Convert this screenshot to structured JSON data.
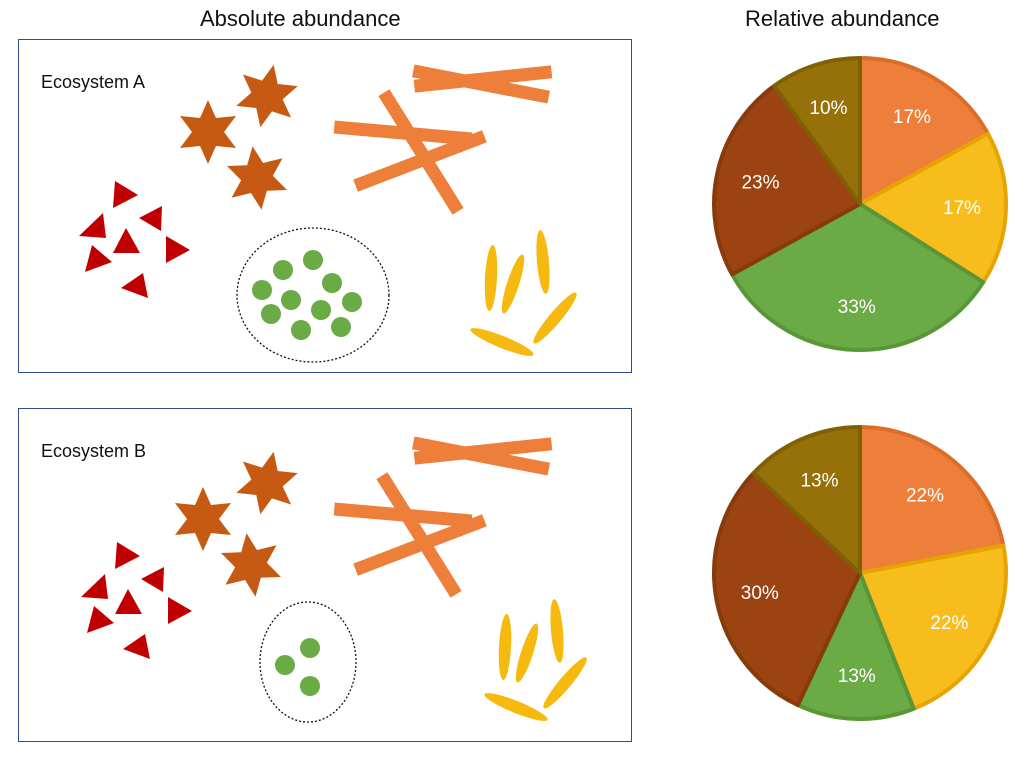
{
  "headings": {
    "absolute": "Absolute abundance",
    "relative": "Relative abundance"
  },
  "colors": {
    "orange_rod": "#ee7f3b",
    "yellow": "#f6b90f",
    "green": "#6aab46",
    "dark_brown": "#9b4411",
    "olive": "#967008",
    "star_brown": "#c65a13",
    "red_triangle": "#c00000",
    "border_blue": "#2f4d8c"
  },
  "ecosystems": [
    {
      "label": "Ecosystem A",
      "counts": {
        "red_triangles": 7,
        "brown_stars": 3,
        "green_dots": 10,
        "orange_rods": 5,
        "yellow_ovals": 5
      },
      "slices": [
        {
          "name": "orange",
          "pct": "17%",
          "value": 17,
          "fill": "#ee7f3b",
          "stroke": "#dc6d28"
        },
        {
          "name": "yellow",
          "pct": "17%",
          "value": 17,
          "fill": "#f7bd1d",
          "stroke": "#e7a400"
        },
        {
          "name": "green",
          "pct": "33%",
          "value": 33,
          "fill": "#6aab46",
          "stroke": "#5a9637"
        },
        {
          "name": "dark-brown",
          "pct": "23%",
          "value": 23,
          "fill": "#9b4411",
          "stroke": "#873a0c"
        },
        {
          "name": "olive",
          "pct": "10%",
          "value": 10,
          "fill": "#967008",
          "stroke": "#806004"
        }
      ]
    },
    {
      "label": "Ecosystem B",
      "counts": {
        "red_triangles": 7,
        "brown_stars": 3,
        "green_dots": 3,
        "orange_rods": 5,
        "yellow_ovals": 5
      },
      "slices": [
        {
          "name": "orange",
          "pct": "22%",
          "value": 22,
          "fill": "#ee7f3b",
          "stroke": "#dc6d28"
        },
        {
          "name": "yellow",
          "pct": "22%",
          "value": 22,
          "fill": "#f7bd1d",
          "stroke": "#e7a400"
        },
        {
          "name": "green",
          "pct": "13%",
          "value": 13,
          "fill": "#6aab46",
          "stroke": "#5a9637"
        },
        {
          "name": "dark-brown",
          "pct": "30%",
          "value": 30,
          "fill": "#9b4411",
          "stroke": "#873a0c"
        },
        {
          "name": "olive",
          "pct": "13%",
          "value": 13,
          "fill": "#967008",
          "stroke": "#806004"
        }
      ]
    }
  ]
}
